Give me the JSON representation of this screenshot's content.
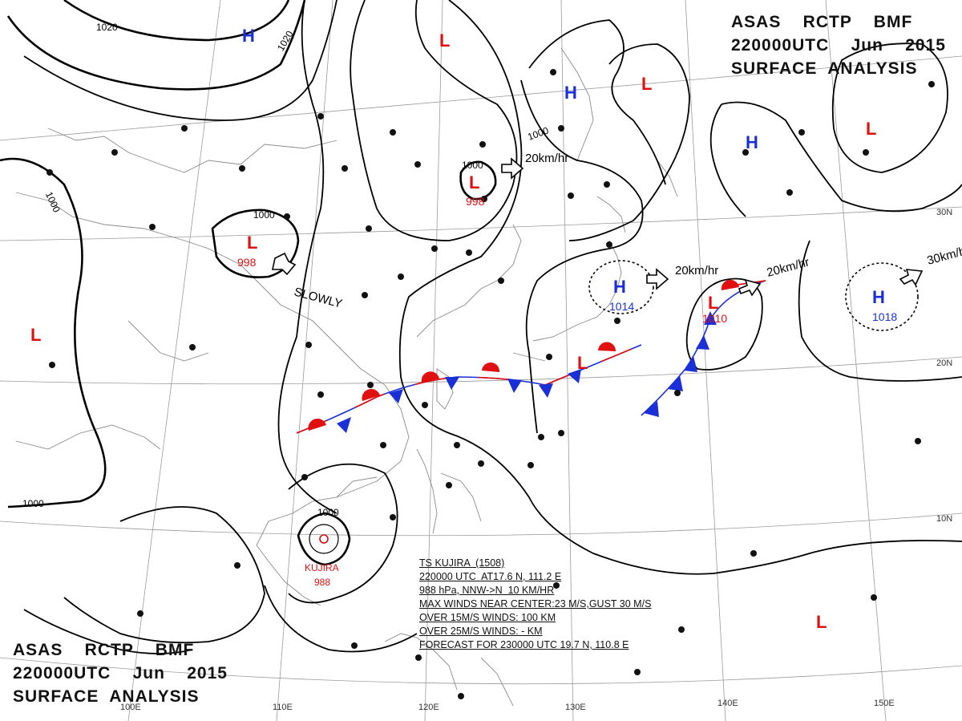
{
  "header_top": {
    "line1": "ASAS    RCTP    BMF",
    "line2": "220000UTC    Jun    2015",
    "line3": "SURFACE  ANALYSIS"
  },
  "header_bottom": {
    "line1": "ASAS    RCTP    BMF",
    "line2": "220000UTC    Jun    2015",
    "line3": "SURFACE  ANALYSIS"
  },
  "lon_labels": [
    "100E",
    "110E",
    "120E",
    "130E",
    "140E",
    "150E"
  ],
  "lat_labels": [
    "30N",
    "20N",
    "10N"
  ],
  "isobar_labels": [
    "1020",
    "1020",
    "1000",
    "1000",
    "1000",
    "1000",
    "1000",
    "1000"
  ],
  "pressure_centers": [
    {
      "type": "H",
      "color": "#1a2fd6"
    },
    {
      "type": "L",
      "color": "#e01010"
    },
    {
      "type": "H",
      "color": "#1a2fd6"
    },
    {
      "type": "L",
      "color": "#e01010"
    },
    {
      "type": "H",
      "color": "#1a2fd6"
    },
    {
      "type": "L",
      "color": "#e01010"
    },
    {
      "type": "L",
      "color": "#e01010",
      "value": "998"
    },
    {
      "type": "L",
      "color": "#e01010",
      "value": "998"
    },
    {
      "type": "H",
      "color": "#1a2fd6",
      "value": "1014"
    },
    {
      "type": "L",
      "color": "#e01010",
      "value": "1010"
    },
    {
      "type": "H",
      "color": "#1a2fd6",
      "value": "1018"
    },
    {
      "type": "L",
      "color": "#e01010"
    },
    {
      "type": "L",
      "color": "#e01010"
    },
    {
      "type": "L",
      "color": "#e01010"
    }
  ],
  "movements": [
    "20km/hr",
    "20km/hr",
    "20km/hr",
    "30km/hr",
    "SLOWLY"
  ],
  "typhoon": {
    "name": "KUJIRA",
    "pressure": "988",
    "info_lines": [
      "TS KUJIRA  (1508)",
      "220000 UTC  AT17.6 N, 111.2 E",
      "988 hPa, NNW->N  10 KM/HR",
      "MAX WINDS NEAR CENTER:23 M/S,GUST 30 M/S",
      "OVER 15M/S WINDS: 100 KM",
      "OVER 25M/S WINDS: - KM",
      "FORECAST FOR 230000 UTC 19.7 N, 110.8 E"
    ]
  },
  "colors": {
    "high": "#1a2fd6",
    "low": "#e01010",
    "warm_front": "#e01010",
    "cold_front": "#1a2fd6",
    "isobar": "#000000",
    "coast": "#8a8a8a"
  }
}
